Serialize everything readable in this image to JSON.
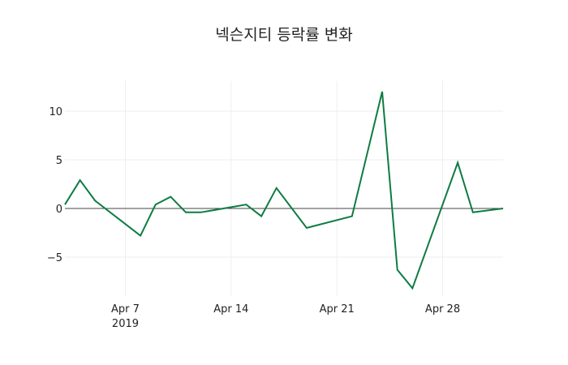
{
  "title": "넥슨지티 등락률 변화",
  "colors": {
    "line": "#0e7c43",
    "grid": "#eeeeee",
    "zero": "#444444"
  },
  "chart_data": {
    "type": "line",
    "title": "넥슨지티 등락률 변화",
    "xlabel": "",
    "ylabel": "",
    "x": [
      "2019-04-03",
      "2019-04-04",
      "2019-04-05",
      "2019-04-08",
      "2019-04-09",
      "2019-04-10",
      "2019-04-11",
      "2019-04-12",
      "2019-04-15",
      "2019-04-16",
      "2019-04-17",
      "2019-04-19",
      "2019-04-22",
      "2019-04-24",
      "2019-04-25",
      "2019-04-26",
      "2019-04-29",
      "2019-04-30",
      "2019-05-02"
    ],
    "series": [
      {
        "name": "등락률",
        "values": [
          0.4,
          2.9,
          0.8,
          -2.8,
          0.4,
          1.2,
          -0.4,
          -0.4,
          0.4,
          -0.8,
          2.1,
          -2.0,
          -0.8,
          12.0,
          -6.3,
          -8.2,
          4.7,
          -0.4,
          0.0
        ]
      }
    ],
    "yticks": [
      10,
      5,
      0,
      -5
    ],
    "ytick_labels": [
      "10",
      "5",
      "0",
      "−5"
    ],
    "xticks": [
      "Apr 7",
      "Apr 14",
      "Apr 21",
      "Apr 28"
    ],
    "xtick_sublabel": "2019",
    "ylim": [
      -9,
      13.5
    ],
    "grid": true,
    "legend": false
  }
}
